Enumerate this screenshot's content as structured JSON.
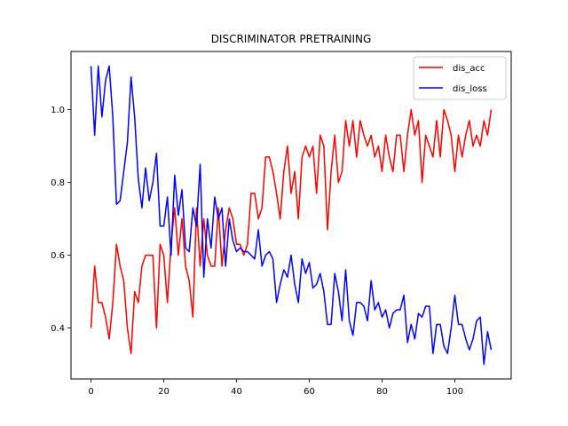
{
  "chart_data": {
    "type": "line",
    "title": "DISCRIMINATOR PRETRAINING",
    "xlabel": "",
    "ylabel": "",
    "xlim": [
      -5.5,
      115.5
    ],
    "ylim": [
      0.26,
      1.16
    ],
    "xticks": [
      0,
      20,
      40,
      60,
      80,
      100
    ],
    "yticks": [
      0.4,
      0.6,
      0.8,
      1.0
    ],
    "xtick_labels": [
      "0",
      "20",
      "40",
      "60",
      "80",
      "100"
    ],
    "ytick_labels": [
      "0.4",
      "0.6",
      "0.8",
      "1.0"
    ],
    "grid": false,
    "legend_position": "top-right",
    "series": [
      {
        "name": "dis_acc",
        "color": "#ff0000",
        "x": [
          0,
          1,
          2,
          3,
          4,
          5,
          6,
          7,
          8,
          9,
          10,
          11,
          12,
          13,
          14,
          15,
          16,
          17,
          18,
          19,
          20,
          21,
          22,
          23,
          24,
          25,
          26,
          27,
          28,
          29,
          30,
          31,
          32,
          33,
          34,
          35,
          36,
          37,
          38,
          39,
          40,
          41,
          42,
          43,
          44,
          45,
          46,
          47,
          48,
          49,
          50,
          51,
          52,
          53,
          54,
          55,
          56,
          57,
          58,
          59,
          60,
          61,
          62,
          63,
          64,
          65,
          66,
          67,
          68,
          69,
          70,
          71,
          72,
          73,
          74,
          75,
          76,
          77,
          78,
          79,
          80,
          81,
          82,
          83,
          84,
          85,
          86,
          87,
          88,
          89,
          90,
          91,
          92,
          93,
          94,
          95,
          96,
          97,
          98,
          99,
          100,
          101,
          102,
          103,
          104,
          105,
          106,
          107,
          108,
          109,
          110
        ],
        "values": [
          0.4,
          0.57,
          0.47,
          0.47,
          0.43,
          0.37,
          0.47,
          0.63,
          0.57,
          0.53,
          0.4,
          0.33,
          0.5,
          0.47,
          0.57,
          0.6,
          0.6,
          0.6,
          0.4,
          0.63,
          0.6,
          0.47,
          0.63,
          0.73,
          0.6,
          0.7,
          0.57,
          0.53,
          0.43,
          0.73,
          0.57,
          0.7,
          0.6,
          0.57,
          0.57,
          0.73,
          0.57,
          0.67,
          0.73,
          0.7,
          0.63,
          0.63,
          0.6,
          0.63,
          0.77,
          0.77,
          0.7,
          0.73,
          0.87,
          0.87,
          0.83,
          0.77,
          0.7,
          0.83,
          0.9,
          0.77,
          0.83,
          0.7,
          0.87,
          0.9,
          0.87,
          0.9,
          0.77,
          0.93,
          0.9,
          0.67,
          0.83,
          0.93,
          0.8,
          0.83,
          0.97,
          0.9,
          0.97,
          0.87,
          0.97,
          0.93,
          0.9,
          0.93,
          0.87,
          0.9,
          0.83,
          0.93,
          0.87,
          0.83,
          0.93,
          0.93,
          0.83,
          0.93,
          1.0,
          0.93,
          0.97,
          0.8,
          0.93,
          0.9,
          0.87,
          0.97,
          0.87,
          1.0,
          0.97,
          0.93,
          0.83,
          0.93,
          0.87,
          0.93,
          0.97,
          0.9,
          0.93,
          0.9,
          0.97,
          0.93,
          1.0
        ]
      },
      {
        "name": "dis_loss",
        "color": "#0000ff",
        "x": [
          0,
          1,
          2,
          3,
          4,
          5,
          6,
          7,
          8,
          9,
          10,
          11,
          12,
          13,
          14,
          15,
          16,
          17,
          18,
          19,
          20,
          21,
          22,
          23,
          24,
          25,
          26,
          27,
          28,
          29,
          30,
          31,
          32,
          33,
          34,
          35,
          36,
          37,
          38,
          39,
          40,
          41,
          42,
          43,
          44,
          45,
          46,
          47,
          48,
          49,
          50,
          51,
          52,
          53,
          54,
          55,
          56,
          57,
          58,
          59,
          60,
          61,
          62,
          63,
          64,
          65,
          66,
          67,
          68,
          69,
          70,
          71,
          72,
          73,
          74,
          75,
          76,
          77,
          78,
          79,
          80,
          81,
          82,
          83,
          84,
          85,
          86,
          87,
          88,
          89,
          90,
          91,
          92,
          93,
          94,
          95,
          96,
          97,
          98,
          99,
          100,
          101,
          102,
          103,
          104,
          105,
          106,
          107,
          108,
          109,
          110
        ],
        "values": [
          1.12,
          0.93,
          1.12,
          0.98,
          1.08,
          1.12,
          0.98,
          0.74,
          0.75,
          0.83,
          0.91,
          1.09,
          0.98,
          0.81,
          0.73,
          0.84,
          0.75,
          0.8,
          0.88,
          0.68,
          0.68,
          0.76,
          0.6,
          0.82,
          0.71,
          0.78,
          0.62,
          0.61,
          0.73,
          0.68,
          0.85,
          0.54,
          0.7,
          0.62,
          0.76,
          0.7,
          0.73,
          0.57,
          0.7,
          0.64,
          0.61,
          0.62,
          0.61,
          0.61,
          0.6,
          0.59,
          0.67,
          0.57,
          0.6,
          0.61,
          0.59,
          0.47,
          0.52,
          0.56,
          0.54,
          0.6,
          0.52,
          0.47,
          0.59,
          0.55,
          0.58,
          0.51,
          0.52,
          0.55,
          0.5,
          0.41,
          0.41,
          0.55,
          0.5,
          0.42,
          0.56,
          0.42,
          0.38,
          0.47,
          0.47,
          0.46,
          0.42,
          0.53,
          0.45,
          0.47,
          0.43,
          0.45,
          0.4,
          0.44,
          0.45,
          0.45,
          0.49,
          0.36,
          0.41,
          0.37,
          0.44,
          0.43,
          0.46,
          0.46,
          0.33,
          0.41,
          0.41,
          0.35,
          0.33,
          0.4,
          0.49,
          0.41,
          0.41,
          0.37,
          0.34,
          0.37,
          0.42,
          0.43,
          0.3,
          0.39,
          0.34
        ]
      }
    ]
  }
}
